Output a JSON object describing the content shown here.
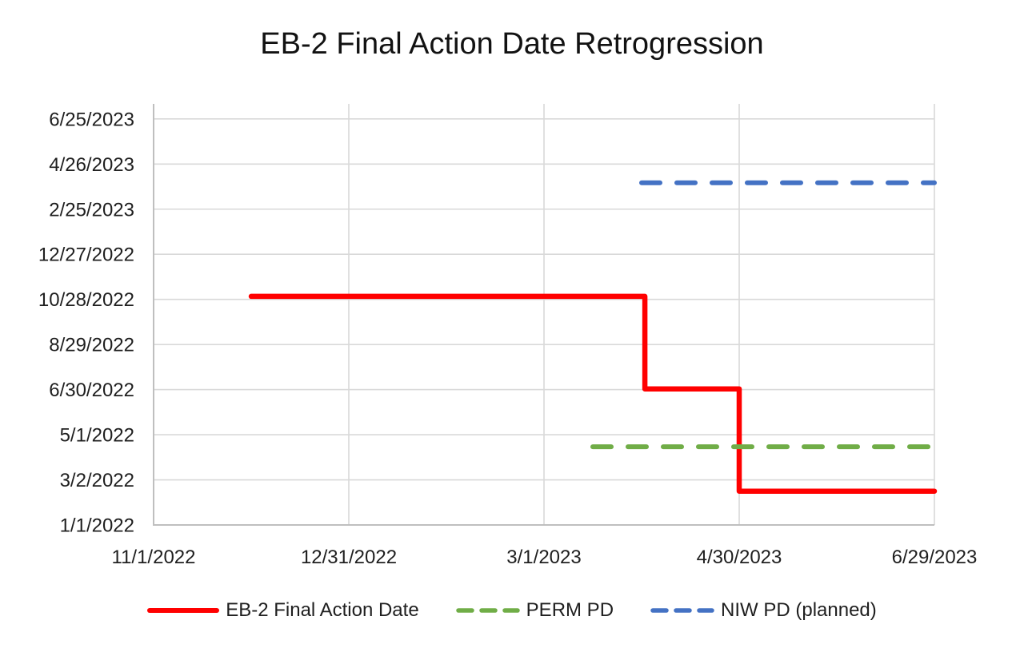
{
  "chart_data": {
    "type": "line",
    "title": "EB-2 Final Action Date Retrogression",
    "grid": true,
    "legend_position": "bottom",
    "colors": {
      "gridline": "#d9d9d9",
      "axis_line": "#bfbfbf",
      "tick_text": "#1f1f1f",
      "title_text": "#121212",
      "background": "#ffffff"
    },
    "x_axis": {
      "min": "11/1/2022",
      "max": "6/29/2023",
      "tick_interval_days": 60,
      "ticks": [
        "11/1/2022",
        "12/31/2022",
        "3/1/2023",
        "4/30/2023",
        "6/29/2023"
      ]
    },
    "y_axis": {
      "min": "1/1/2022",
      "max": "7/15/2023",
      "tick_interval_days": 60,
      "ticks": [
        "1/1/2022",
        "3/2/2022",
        "5/1/2022",
        "6/30/2022",
        "8/29/2022",
        "10/28/2022",
        "12/27/2022",
        "2/25/2023",
        "4/26/2023",
        "6/25/2023"
      ]
    },
    "series": [
      {
        "name": "EB-2 Final Action Date",
        "color": "#ff0000",
        "dash": "solid",
        "points": [
          {
            "x": "12/1/2022",
            "y": "11/1/2022"
          },
          {
            "x": "4/1/2023",
            "y": "11/1/2022"
          },
          {
            "x": "4/1/2023",
            "y": "7/1/2022"
          },
          {
            "x": "4/30/2023",
            "y": "7/1/2022"
          },
          {
            "x": "4/30/2023",
            "y": "2/15/2022"
          },
          {
            "x": "6/29/2023",
            "y": "2/15/2022"
          }
        ]
      },
      {
        "name": "PERM PD",
        "color": "#70ad47",
        "dash": "dashed",
        "points": [
          {
            "x": "3/16/2023",
            "y": "4/15/2022"
          },
          {
            "x": "6/29/2023",
            "y": "4/15/2022"
          }
        ]
      },
      {
        "name": "NIW PD (planned)",
        "color": "#4472c4",
        "dash": "dashed",
        "points": [
          {
            "x": "3/31/2023",
            "y": "4/1/2023"
          },
          {
            "x": "6/29/2023",
            "y": "4/1/2023"
          }
        ]
      }
    ]
  }
}
